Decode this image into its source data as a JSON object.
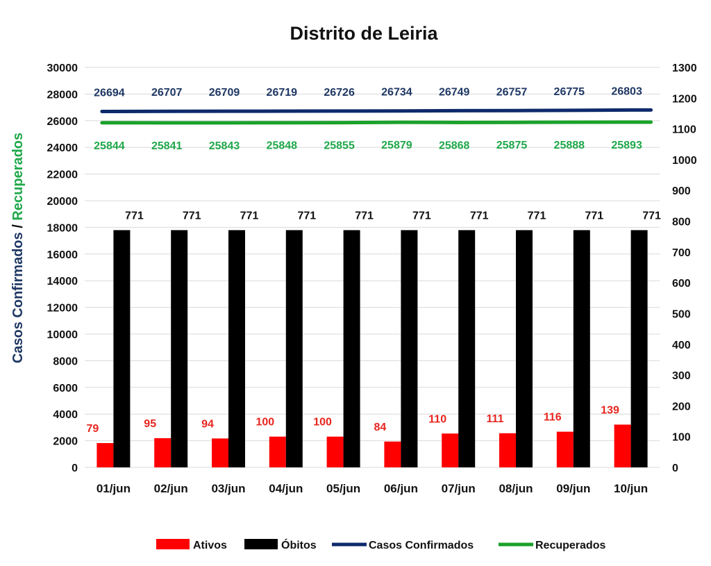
{
  "chart_data": {
    "type": "bar",
    "title": "Distrito de Leiria",
    "ylabel_left_part1": "Casos Confirmados",
    "ylabel_left_sep": " / ",
    "ylabel_left_part2": "Recuperados",
    "categories": [
      "01/jun",
      "02/jun",
      "03/jun",
      "04/jun",
      "05/jun",
      "06/jun",
      "07/jun",
      "08/jun",
      "09/jun",
      "10/jun"
    ],
    "y_left": {
      "min": 0,
      "max": 30000,
      "step": 2000
    },
    "y_right": {
      "min": 0,
      "max": 1300,
      "step": 100
    },
    "grid": true,
    "legend_position": "bottom",
    "series": [
      {
        "name": "Ativos",
        "kind": "bar",
        "axis": "right",
        "color": "#ff0000",
        "label_color": "#e8251f",
        "values": [
          79,
          95,
          94,
          100,
          100,
          84,
          110,
          111,
          116,
          139
        ]
      },
      {
        "name": "Óbitos",
        "kind": "bar",
        "axis": "right",
        "color": "#000000",
        "label_color": "#111111",
        "values": [
          771,
          771,
          771,
          771,
          771,
          771,
          771,
          771,
          771,
          771
        ]
      },
      {
        "name": "Casos Confirmados",
        "kind": "line",
        "axis": "left",
        "color": "#0d2a6b",
        "label_color": "#1f3864",
        "values": [
          26694,
          26707,
          26709,
          26719,
          26726,
          26734,
          26749,
          26757,
          26775,
          26803
        ]
      },
      {
        "name": "Recuperados",
        "kind": "line",
        "axis": "left",
        "color": "#1aa12a",
        "label_color": "#1fa84a",
        "values": [
          25844,
          25841,
          25843,
          25848,
          25855,
          25879,
          25868,
          25875,
          25888,
          25893
        ]
      }
    ]
  }
}
